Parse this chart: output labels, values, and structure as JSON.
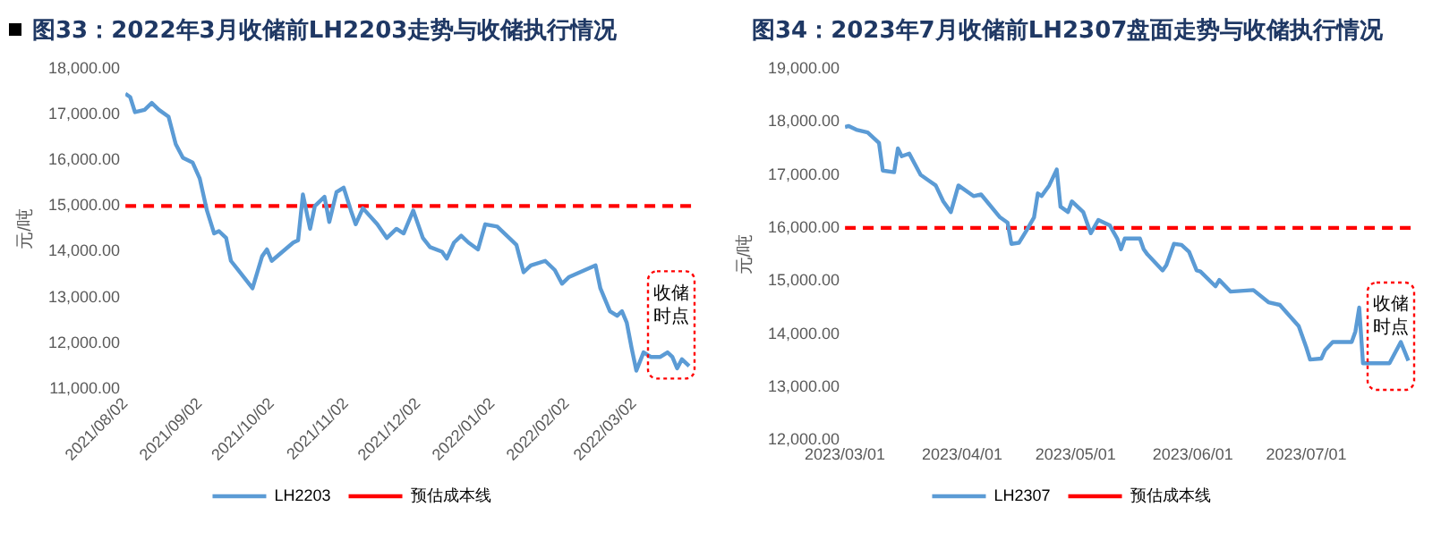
{
  "chart_data": [
    {
      "type": "line",
      "title": "图33：2022年3月收储前LH2203走势与收储执行情况",
      "ylabel": "元/吨",
      "legend": "bottom",
      "grid": false,
      "marker": "none",
      "line_style": "solid",
      "x": [
        "2021-08-02",
        "2021-08-04",
        "2021-08-06",
        "2021-08-10",
        "2021-08-13",
        "2021-08-16",
        "2021-08-20",
        "2021-08-23",
        "2021-08-26",
        "2021-08-30",
        "2021-09-02",
        "2021-09-05",
        "2021-09-08",
        "2021-09-10",
        "2021-09-13",
        "2021-09-15",
        "2021-09-18",
        "2021-09-24",
        "2021-09-28",
        "2021-09-30",
        "2021-10-02",
        "2021-10-11",
        "2021-10-13",
        "2021-10-15",
        "2021-10-18",
        "2021-10-20",
        "2021-10-24",
        "2021-10-26",
        "2021-10-29",
        "2021-11-01",
        "2021-11-04",
        "2021-11-06",
        "2021-11-09",
        "2021-11-15",
        "2021-11-19",
        "2021-11-23",
        "2021-11-26",
        "2021-11-30",
        "2021-12-04",
        "2021-12-07",
        "2021-12-12",
        "2021-12-14",
        "2021-12-17",
        "2021-12-20",
        "2021-12-23",
        "2021-12-27",
        "2021-12-30",
        "2022-01-04",
        "2022-01-09",
        "2022-01-12",
        "2022-01-15",
        "2022-01-18",
        "2022-01-24",
        "2022-01-28",
        "2022-01-31",
        "2022-02-03",
        "2022-02-14",
        "2022-02-16",
        "2022-02-20",
        "2022-02-23",
        "2022-02-25",
        "2022-02-27",
        "2022-03-01",
        "2022-03-03",
        "2022-03-06",
        "2022-03-09",
        "2022-03-13",
        "2022-03-16",
        "2022-03-18",
        "2022-03-20",
        "2022-03-22",
        "2022-03-25"
      ],
      "series": [
        {
          "name": "LH2203",
          "color": "#5b9bd5",
          "values": [
            17450,
            17380,
            17050,
            17100,
            17250,
            17100,
            16950,
            16350,
            16050,
            15950,
            15600,
            14900,
            14400,
            14450,
            14300,
            13800,
            13600,
            13200,
            13900,
            14050,
            13800,
            14200,
            14250,
            15250,
            14500,
            15000,
            15200,
            14650,
            15300,
            15400,
            14900,
            14600,
            14950,
            14600,
            14300,
            14500,
            14400,
            14900,
            14300,
            14100,
            14000,
            13850,
            14200,
            14350,
            14200,
            14050,
            14600,
            14550,
            14300,
            14150,
            13550,
            13700,
            13800,
            13600,
            13300,
            13450,
            13700,
            13200,
            12700,
            12600,
            12700,
            12450,
            11900,
            11400,
            11800,
            11700,
            11700,
            11800,
            11700,
            11450,
            11650,
            11500
          ]
        }
      ],
      "xlim": [
        "2021-08-02",
        "2022-03-28"
      ],
      "xticks": [
        {
          "value": "2021-08-02",
          "label": "2021/08/02"
        },
        {
          "value": "2021-09-02",
          "label": "2021/09/02"
        },
        {
          "value": "2021-10-02",
          "label": "2021/10/02"
        },
        {
          "value": "2021-11-02",
          "label": "2021/11/02"
        },
        {
          "value": "2021-12-02",
          "label": "2021/12/02"
        },
        {
          "value": "2022-01-02",
          "label": "2022/01/02"
        },
        {
          "value": "2022-02-02",
          "label": "2022/02/02"
        },
        {
          "value": "2022-03-02",
          "label": "2022/03/02"
        }
      ],
      "ylim": [
        11000,
        18000
      ],
      "yticks": [
        {
          "value": 11000,
          "label": "11,000.00"
        },
        {
          "value": 12000,
          "label": "12,000.00"
        },
        {
          "value": 13000,
          "label": "13,000.00"
        },
        {
          "value": 14000,
          "label": "14,000.00"
        },
        {
          "value": 15000,
          "label": "15,000.00"
        },
        {
          "value": 16000,
          "label": "16,000.00"
        },
        {
          "value": 17000,
          "label": "17,000.00"
        },
        {
          "value": 18000,
          "label": "18,000.00"
        }
      ],
      "ref_lines": [
        {
          "axis": "y",
          "value": 15000,
          "label": "预估成本线",
          "color": "#ff0000",
          "line_style": "dashed"
        }
      ],
      "annotations": [
        "收储时点"
      ]
    },
    {
      "type": "line",
      "title": "图34：2023年7月收储前LH2307盘面走势与收储执行情况",
      "ylabel": "元/吨",
      "legend": "bottom",
      "grid": false,
      "marker": "none",
      "line_style": "solid",
      "x": [
        "2023-03-01",
        "2023-03-02",
        "2023-03-04",
        "2023-03-07",
        "2023-03-10",
        "2023-03-11",
        "2023-03-14",
        "2023-03-15",
        "2023-03-16",
        "2023-03-18",
        "2023-03-21",
        "2023-03-23",
        "2023-03-25",
        "2023-03-27",
        "2023-03-29",
        "2023-03-31",
        "2023-04-04",
        "2023-04-06",
        "2023-04-11",
        "2023-04-13",
        "2023-04-14",
        "2023-04-16",
        "2023-04-18",
        "2023-04-20",
        "2023-04-21",
        "2023-04-22",
        "2023-04-24",
        "2023-04-26",
        "2023-04-27",
        "2023-04-29",
        "2023-04-30",
        "2023-05-03",
        "2023-05-05",
        "2023-05-07",
        "2023-05-10",
        "2023-05-12",
        "2023-05-13",
        "2023-05-14",
        "2023-05-18",
        "2023-05-19",
        "2023-05-20",
        "2023-05-24",
        "2023-05-25",
        "2023-05-27",
        "2023-05-29",
        "2023-05-31",
        "2023-06-02",
        "2023-06-03",
        "2023-06-07",
        "2023-06-08",
        "2023-06-11",
        "2023-06-17",
        "2023-06-21",
        "2023-06-24",
        "2023-06-29",
        "2023-07-01",
        "2023-07-02",
        "2023-07-05",
        "2023-07-06",
        "2023-07-08",
        "2023-07-13",
        "2023-07-14",
        "2023-07-15",
        "2023-07-16",
        "2023-07-23",
        "2023-07-26",
        "2023-07-28"
      ],
      "series": [
        {
          "name": "LH2307",
          "color": "#5b9bd5",
          "values": [
            17900,
            17920,
            17850,
            17800,
            17600,
            17080,
            17050,
            17500,
            17350,
            17400,
            17000,
            16900,
            16800,
            16500,
            16300,
            16800,
            16600,
            16630,
            16200,
            16100,
            15700,
            15720,
            15950,
            16200,
            16650,
            16600,
            16800,
            17100,
            16400,
            16300,
            16500,
            16300,
            15900,
            16150,
            16050,
            15800,
            15600,
            15800,
            15800,
            15600,
            15500,
            15200,
            15300,
            15700,
            15680,
            15550,
            15200,
            15180,
            14900,
            15020,
            14800,
            14830,
            14600,
            14550,
            14150,
            13750,
            13520,
            13540,
            13700,
            13850,
            13850,
            14050,
            14500,
            13450,
            13450,
            13850,
            13500
          ]
        }
      ],
      "xlim": [
        "2023-03-01",
        "2023-07-30"
      ],
      "xticks": [
        {
          "value": "2023-03-01",
          "label": "2023/03/01"
        },
        {
          "value": "2023-04-01",
          "label": "2023/04/01"
        },
        {
          "value": "2023-05-01",
          "label": "2023/05/01"
        },
        {
          "value": "2023-06-01",
          "label": "2023/06/01"
        },
        {
          "value": "2023-07-01",
          "label": "2023/07/01"
        }
      ],
      "ylim": [
        12000,
        19000
      ],
      "yticks": [
        {
          "value": 12000,
          "label": "12,000.00"
        },
        {
          "value": 13000,
          "label": "13,000.00"
        },
        {
          "value": 14000,
          "label": "14,000.00"
        },
        {
          "value": 15000,
          "label": "15,000.00"
        },
        {
          "value": 16000,
          "label": "16,000.00"
        },
        {
          "value": 17000,
          "label": "17,000.00"
        },
        {
          "value": 18000,
          "label": "18,000.00"
        },
        {
          "value": 19000,
          "label": "19,000.00"
        }
      ],
      "ref_lines": [
        {
          "axis": "y",
          "value": 16000,
          "label": "预估成本线",
          "color": "#ff0000",
          "line_style": "dashed"
        }
      ],
      "annotations": [
        "收储时点"
      ]
    }
  ]
}
